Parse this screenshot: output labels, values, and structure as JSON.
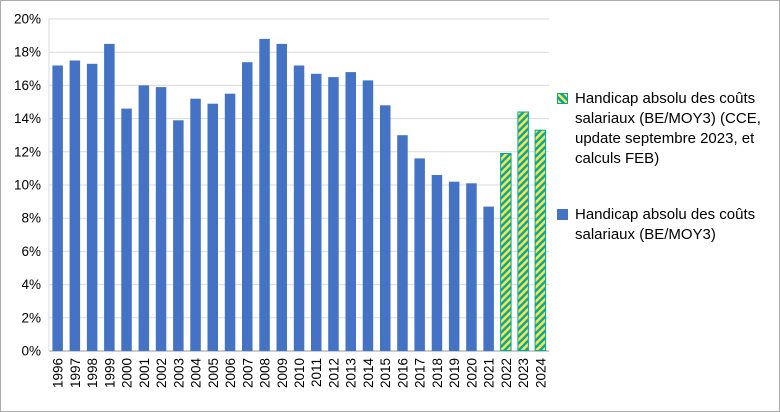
{
  "figure": {
    "border_color": "#ababab",
    "background": "#ffffff"
  },
  "axes": {
    "grid_color": "#d9d9d9",
    "baseline_color": "#9a9a9a",
    "tick_label_color": "#000000"
  },
  "chart_data": {
    "type": "bar",
    "title": "",
    "xlabel": "",
    "ylabel": "",
    "ylim": [
      0,
      20
    ],
    "ytick_step": 2,
    "ytick_format": "percent",
    "yticks": [
      "0%",
      "2%",
      "4%",
      "6%",
      "8%",
      "10%",
      "12%",
      "14%",
      "16%",
      "18%",
      "20%"
    ],
    "grid": true,
    "legend_position": "right",
    "categories": [
      "1996",
      "1997",
      "1998",
      "1999",
      "2000",
      "2001",
      "2002",
      "2003",
      "2004",
      "2005",
      "2006",
      "2007",
      "2008",
      "2009",
      "2010",
      "2011",
      "2012",
      "2013",
      "2014",
      "2015",
      "2016",
      "2017",
      "2018",
      "2019",
      "2020",
      "2021",
      "2022",
      "2023",
      "2024"
    ],
    "series": [
      {
        "name": "Handicap absolu des coûts salariaux (BE/MOY3)",
        "style": "solid",
        "color": "#4472C4",
        "values": [
          17.2,
          17.5,
          17.3,
          18.5,
          14.6,
          16.0,
          15.9,
          13.9,
          15.2,
          14.9,
          15.5,
          17.4,
          18.8,
          18.5,
          17.2,
          16.7,
          16.5,
          16.8,
          16.3,
          14.8,
          13.0,
          11.6,
          10.6,
          10.2,
          10.1,
          8.7,
          null,
          null,
          null
        ]
      },
      {
        "name": "Handicap absolu des coûts salariaux (BE/MOY3) (CCE, update septembre 2023, et calculs FEB)",
        "style": "hatched",
        "hatch_colors": [
          "#FFE14D",
          "#00A99D"
        ],
        "values": [
          null,
          null,
          null,
          null,
          null,
          null,
          null,
          null,
          null,
          null,
          null,
          null,
          null,
          null,
          null,
          null,
          null,
          null,
          null,
          null,
          null,
          null,
          null,
          null,
          null,
          null,
          11.9,
          14.4,
          13.3
        ]
      }
    ]
  }
}
